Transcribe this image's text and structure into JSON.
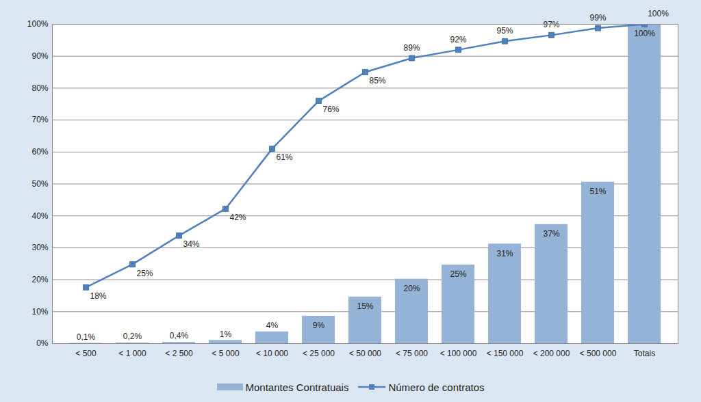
{
  "chart_data": {
    "type": "bar",
    "categories": [
      "< 500",
      "< 1 000",
      "< 2 500",
      "< 5 000",
      "< 10 000",
      "< 25 000",
      "< 50 000",
      "< 75 000",
      "< 100 000",
      "< 150 000",
      "< 200 000",
      "< 500 000",
      "Totais"
    ],
    "series": [
      {
        "name": "Montantes Contratuais",
        "type": "bar",
        "color": "#95b3d7",
        "values": [
          0.1,
          0.2,
          0.4,
          1,
          3.7,
          8.6,
          14.6,
          20.2,
          24.6,
          31.2,
          37.3,
          50.6,
          100
        ],
        "value_labels": [
          "0,1%",
          "0,2%",
          "0,4%",
          "1%",
          "4%",
          "9%",
          "15%",
          "20%",
          "25%",
          "31%",
          "37%",
          "51%",
          "100%"
        ]
      },
      {
        "name": "Número de contratos",
        "type": "line",
        "color": "#4f81bd",
        "marker": "square",
        "values": [
          17.6,
          24.8,
          33.8,
          42.2,
          61,
          76,
          85,
          89.4,
          92,
          94.7,
          96.6,
          98.8,
          100
        ],
        "value_labels": [
          "18%",
          "25%",
          "34%",
          "42%",
          "61%",
          "76%",
          "85%",
          "89%",
          "92%",
          "95%",
          "97%",
          "99%",
          "100%"
        ]
      }
    ],
    "ylim": [
      0,
      100
    ],
    "yticks": [
      {
        "value": 0,
        "label": "0%"
      },
      {
        "value": 10,
        "label": "10%"
      },
      {
        "value": 20,
        "label": "20%"
      },
      {
        "value": 30,
        "label": "30%"
      },
      {
        "value": 40,
        "label": "40%"
      },
      {
        "value": 50,
        "label": "50%"
      },
      {
        "value": 60,
        "label": "60%"
      },
      {
        "value": 70,
        "label": "70%"
      },
      {
        "value": 80,
        "label": "80%"
      },
      {
        "value": 90,
        "label": "90%"
      },
      {
        "value": 100,
        "label": "100%"
      }
    ],
    "grid": true,
    "legend": "bottom",
    "data_labels": true
  }
}
